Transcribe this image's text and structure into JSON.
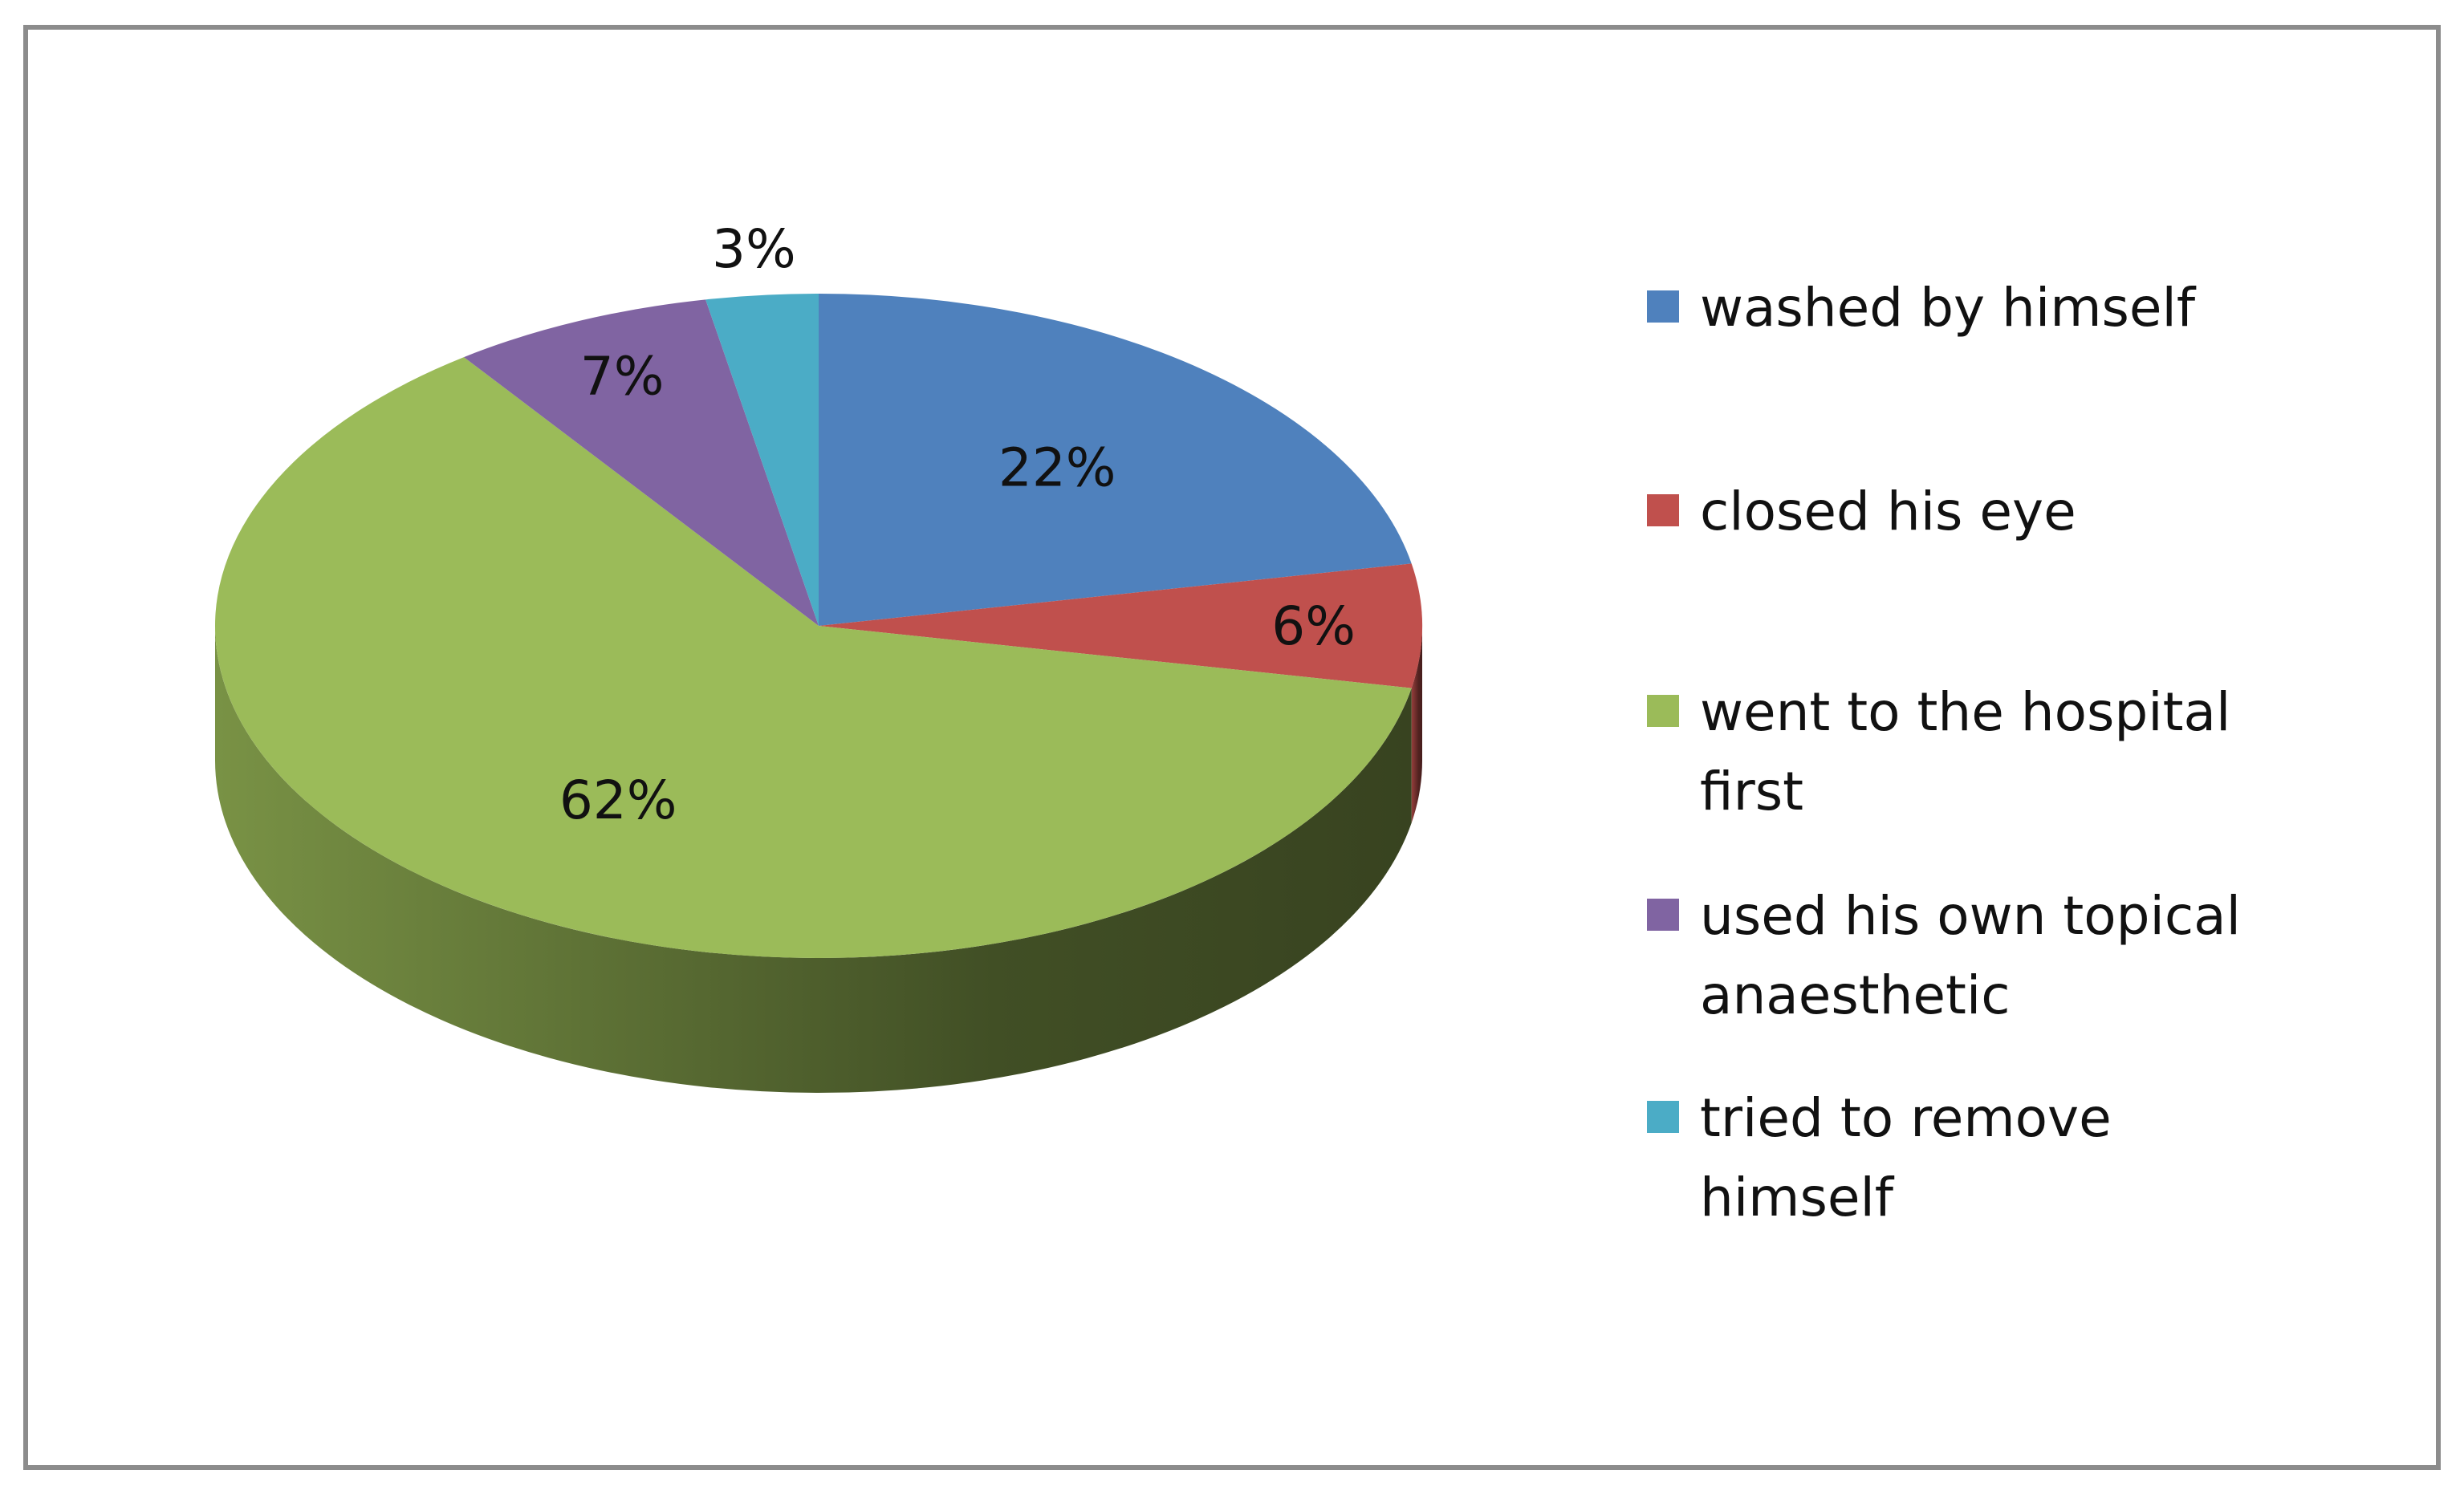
{
  "chart_data": {
    "type": "pie",
    "style": "3d",
    "start_angle_deg": 0,
    "direction": "clockwise",
    "slices": [
      {
        "label": "washed by himself",
        "value": 22,
        "data_label": "22%",
        "color": "#4F81BD"
      },
      {
        "label": "closed his eye",
        "value": 6,
        "data_label": "6%",
        "color": "#C0504D"
      },
      {
        "label": "went to the hospital first",
        "value": 62,
        "data_label": "62%",
        "color": "#9BBB59"
      },
      {
        "label": "used his own topical anaesthetic",
        "value": 7,
        "data_label": "7%",
        "color": "#8064A2"
      },
      {
        "label": "tried to remove himself",
        "value": 3,
        "data_label": "3%",
        "color": "#4BACC6"
      }
    ],
    "legend_position": "right"
  }
}
